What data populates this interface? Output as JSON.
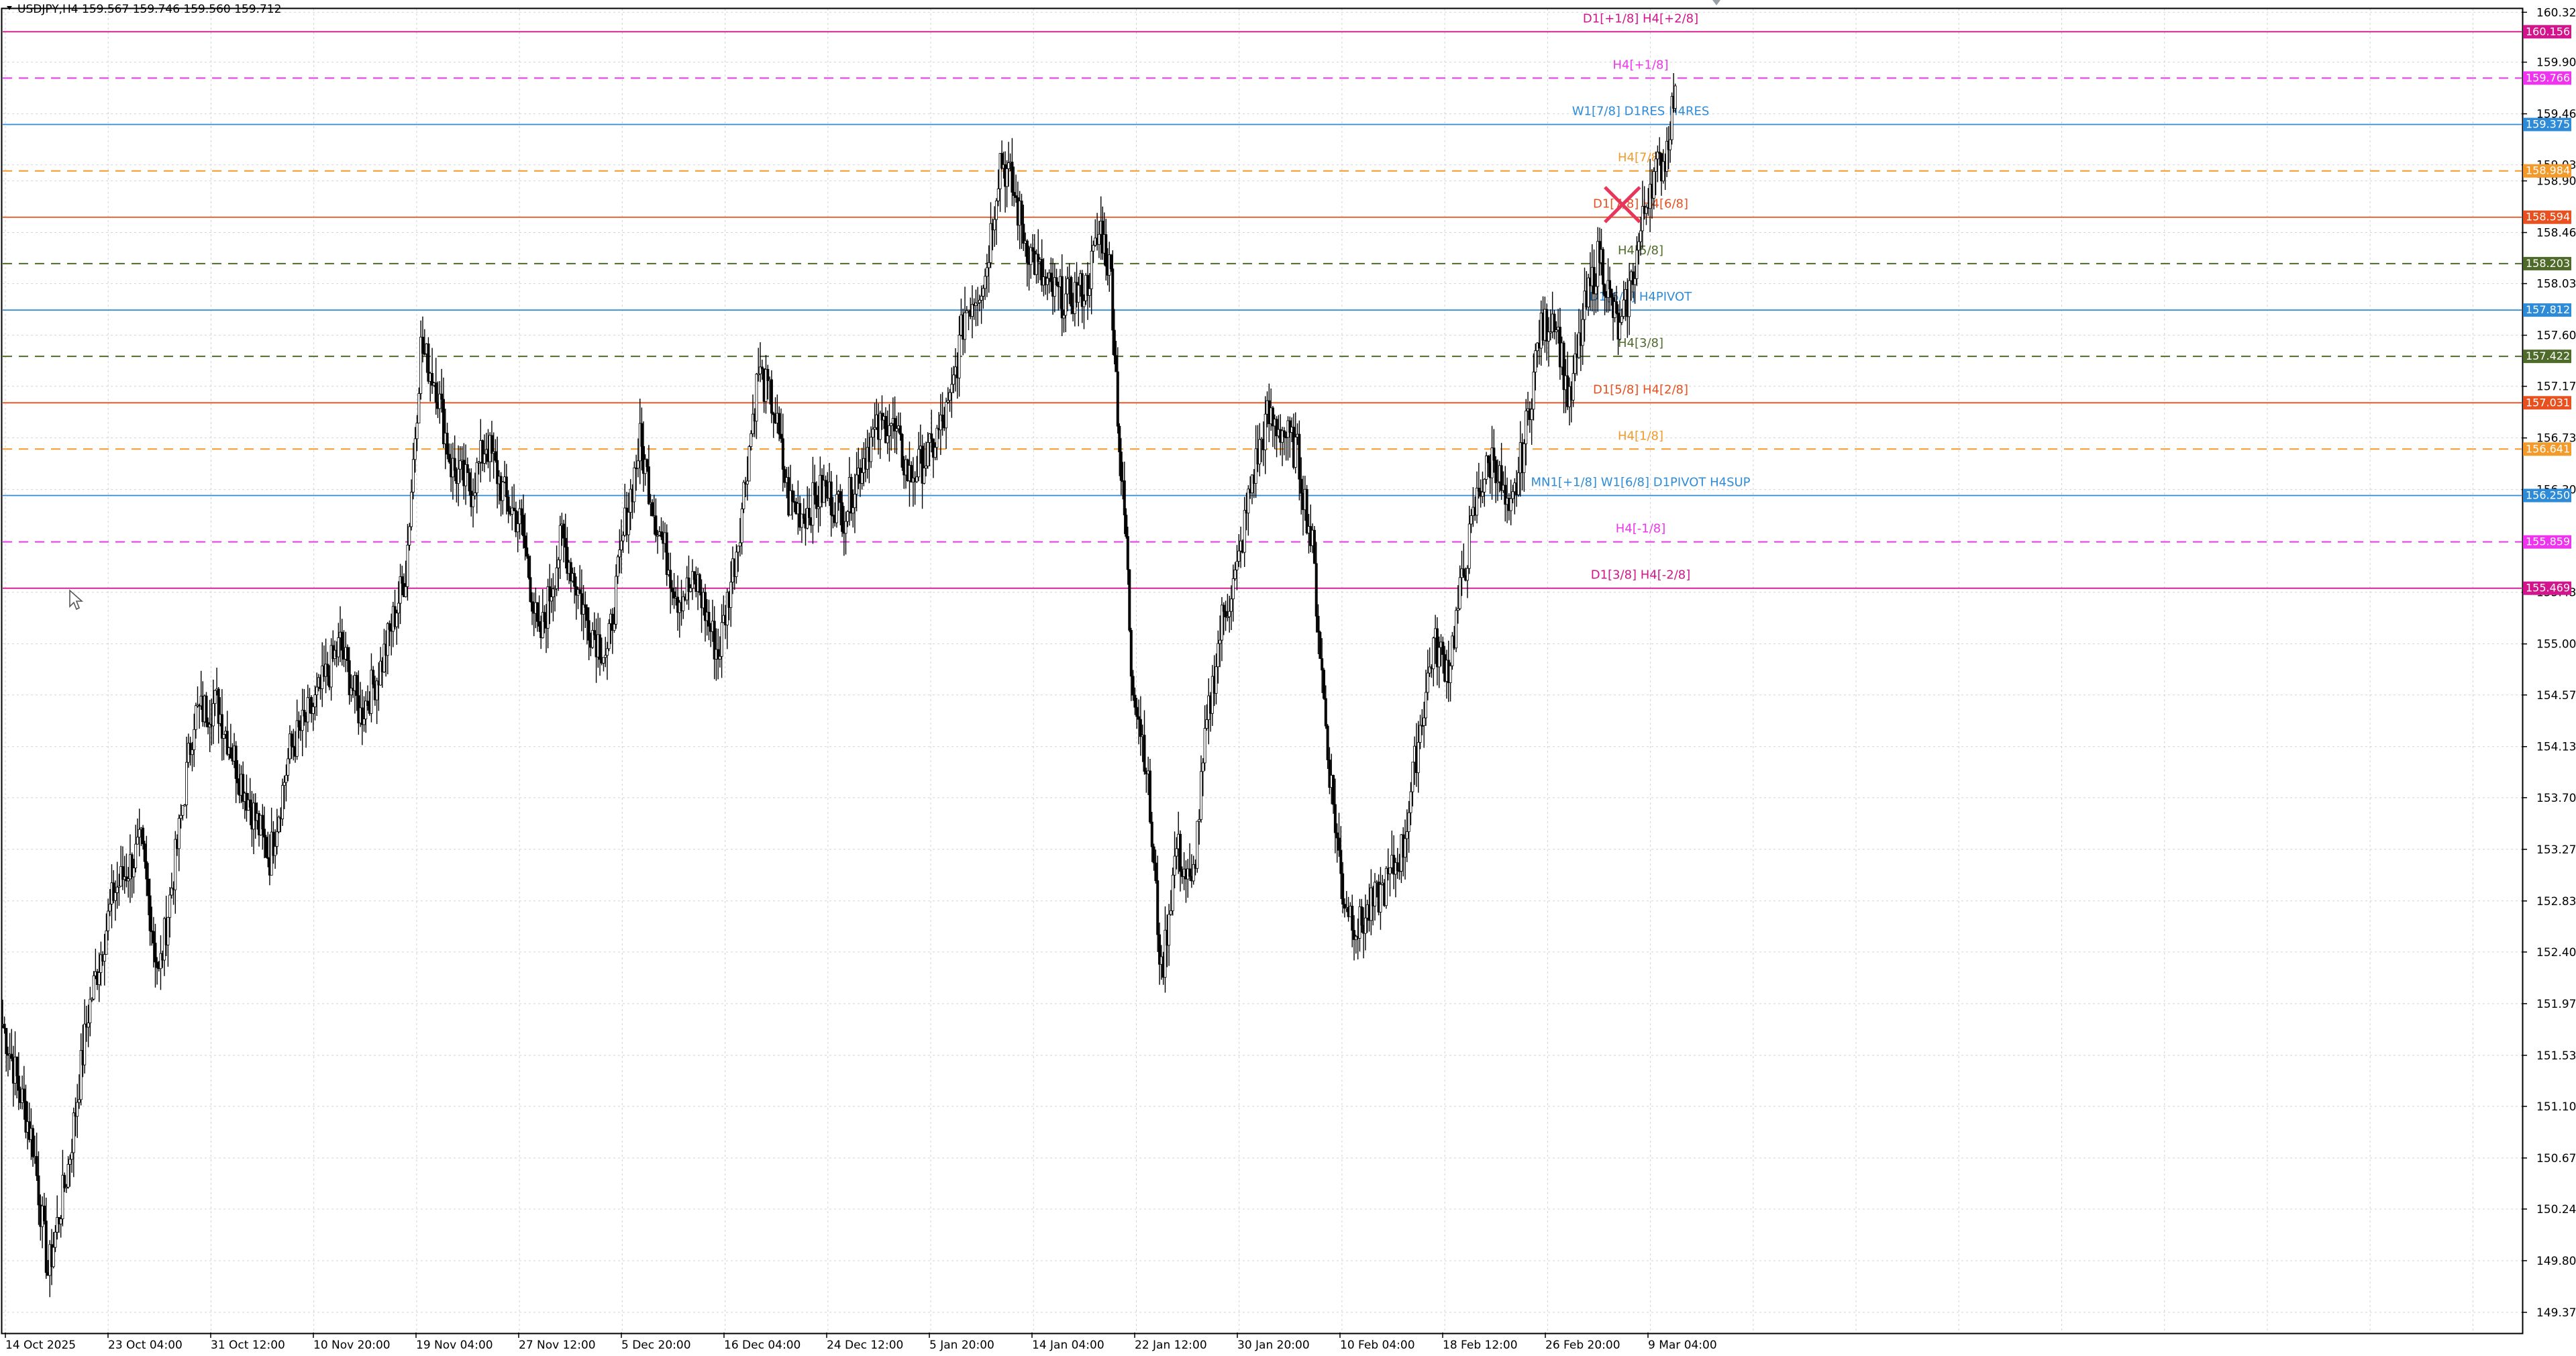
{
  "header": {
    "symbol_line": "USDJPY,H4  159.567 159.746 159.560 159.712"
  },
  "chart_data": {
    "type": "candlestick",
    "symbol": "USDJPY",
    "timeframe": "H4",
    "ohlc_header": {
      "open": 159.567,
      "high": 159.746,
      "low": 159.56,
      "close": 159.712
    },
    "ylim": [
      149.2,
      160.35
    ],
    "y_ticks": [
      "160.320",
      "159.900",
      "159.465",
      "159.035",
      "158.900",
      "158.465",
      "158.035",
      "157.600",
      "157.170",
      "156.735",
      "156.300",
      "155.435",
      "155.000",
      "154.570",
      "154.135",
      "153.705",
      "153.270",
      "152.835",
      "152.405",
      "151.970",
      "151.535",
      "151.105",
      "150.670",
      "150.240",
      "149.805",
      "149.370"
    ],
    "x_ticks": [
      "14 Oct 2025",
      "23 Oct 04:00",
      "31 Oct 12:00",
      "10 Nov 20:00",
      "19 Nov 04:00",
      "27 Nov 12:00",
      "5 Dec 20:00",
      "16 Dec 04:00",
      "24 Dec 12:00",
      "5 Jan 20:00",
      "14 Jan 04:00",
      "22 Jan 12:00",
      "30 Jan 20:00",
      "10 Feb 04:00",
      "18 Feb 12:00",
      "26 Feb 20:00",
      "9 Mar 04:00"
    ],
    "levels": [
      {
        "label": "D1[+1/8] H4[+2/8]",
        "price": 160.156,
        "tag": "160.156",
        "color": "#d4148c",
        "style": "solid"
      },
      {
        "label": "H4[+1/8]",
        "price": 159.766,
        "tag": "159.766",
        "color": "#ee34ee",
        "style": "dash"
      },
      {
        "label": "W1[7/8] D1RES H4RES",
        "price": 159.375,
        "tag": "159.375",
        "color": "#2e8bd8",
        "style": "solid"
      },
      {
        "label": "H4[7/8]",
        "price": 158.984,
        "tag": "158.984",
        "color": "#f39a2b",
        "style": "dash"
      },
      {
        "label": "D1[7/8] H4[6/8]",
        "price": 158.594,
        "tag": "158.594",
        "color": "#e8501f",
        "style": "solid"
      },
      {
        "label": "H4[5/8]",
        "price": 158.203,
        "tag": "158.203",
        "color": "#4e6b2a",
        "style": "dash"
      },
      {
        "label": "D1[6/8] H4PIVOT",
        "price": 157.812,
        "tag": "157.812",
        "color": "#2e8bd8",
        "style": "solid"
      },
      {
        "label": "H4[3/8]",
        "price": 157.422,
        "tag": "157.422",
        "color": "#4e6b2a",
        "style": "dash"
      },
      {
        "label": "D1[5/8] H4[2/8]",
        "price": 157.031,
        "tag": "157.031",
        "color": "#e8501f",
        "style": "solid"
      },
      {
        "label": "H4[1/8]",
        "price": 156.641,
        "tag": "156.641",
        "color": "#f39a2b",
        "style": "dash"
      },
      {
        "label": "MN1[+1/8] W1[6/8] D1PIVOT H4SUP",
        "price": 156.25,
        "tag": "156.250",
        "color": "#2e8bd8",
        "style": "solid"
      },
      {
        "label": "H4[-1/8]",
        "price": 155.859,
        "tag": "155.859",
        "color": "#ee34ee",
        "style": "dash"
      },
      {
        "label": "D1[3/8] H4[-2/8]",
        "price": 155.469,
        "tag": "155.469",
        "color": "#d4148c",
        "style": "solid"
      }
    ],
    "close_path": [
      {
        "x": 0.0,
        "y": 151.8
      },
      {
        "x": 0.012,
        "y": 150.8
      },
      {
        "x": 0.018,
        "y": 149.7
      },
      {
        "x": 0.026,
        "y": 150.6
      },
      {
        "x": 0.034,
        "y": 151.9
      },
      {
        "x": 0.044,
        "y": 152.9
      },
      {
        "x": 0.055,
        "y": 153.3
      },
      {
        "x": 0.062,
        "y": 152.2
      },
      {
        "x": 0.07,
        "y": 153.4
      },
      {
        "x": 0.076,
        "y": 154.4
      },
      {
        "x": 0.085,
        "y": 154.5
      },
      {
        "x": 0.094,
        "y": 153.9
      },
      {
        "x": 0.106,
        "y": 153.2
      },
      {
        "x": 0.114,
        "y": 154.1
      },
      {
        "x": 0.124,
        "y": 154.5
      },
      {
        "x": 0.134,
        "y": 155.0
      },
      {
        "x": 0.142,
        "y": 154.4
      },
      {
        "x": 0.15,
        "y": 154.8
      },
      {
        "x": 0.16,
        "y": 155.6
      },
      {
        "x": 0.166,
        "y": 157.5
      },
      {
        "x": 0.172,
        "y": 157.2
      },
      {
        "x": 0.178,
        "y": 156.5
      },
      {
        "x": 0.186,
        "y": 156.3
      },
      {
        "x": 0.192,
        "y": 156.7
      },
      {
        "x": 0.2,
        "y": 156.2
      },
      {
        "x": 0.206,
        "y": 156.0
      },
      {
        "x": 0.213,
        "y": 155.0
      },
      {
        "x": 0.222,
        "y": 155.9
      },
      {
        "x": 0.232,
        "y": 155.2
      },
      {
        "x": 0.24,
        "y": 154.9
      },
      {
        "x": 0.247,
        "y": 156.0
      },
      {
        "x": 0.253,
        "y": 156.7
      },
      {
        "x": 0.26,
        "y": 156.0
      },
      {
        "x": 0.268,
        "y": 155.4
      },
      {
        "x": 0.276,
        "y": 155.5
      },
      {
        "x": 0.284,
        "y": 154.9
      },
      {
        "x": 0.292,
        "y": 155.9
      },
      {
        "x": 0.3,
        "y": 157.3
      },
      {
        "x": 0.306,
        "y": 157.0
      },
      {
        "x": 0.312,
        "y": 156.2
      },
      {
        "x": 0.318,
        "y": 156.1
      },
      {
        "x": 0.326,
        "y": 156.3
      },
      {
        "x": 0.334,
        "y": 156.1
      },
      {
        "x": 0.344,
        "y": 156.7
      },
      {
        "x": 0.352,
        "y": 156.9
      },
      {
        "x": 0.36,
        "y": 156.4
      },
      {
        "x": 0.368,
        "y": 156.6
      },
      {
        "x": 0.376,
        "y": 157.0
      },
      {
        "x": 0.382,
        "y": 157.8
      },
      {
        "x": 0.39,
        "y": 158.1
      },
      {
        "x": 0.396,
        "y": 159.1
      },
      {
        "x": 0.4,
        "y": 158.9
      },
      {
        "x": 0.406,
        "y": 158.4
      },
      {
        "x": 0.414,
        "y": 158.0
      },
      {
        "x": 0.422,
        "y": 157.9
      },
      {
        "x": 0.43,
        "y": 158.0
      },
      {
        "x": 0.436,
        "y": 158.5
      },
      {
        "x": 0.44,
        "y": 158.1
      },
      {
        "x": 0.444,
        "y": 156.4
      },
      {
        "x": 0.446,
        "y": 155.9
      },
      {
        "x": 0.448,
        "y": 154.8
      },
      {
        "x": 0.454,
        "y": 154.0
      },
      {
        "x": 0.46,
        "y": 152.2
      },
      {
        "x": 0.466,
        "y": 153.3
      },
      {
        "x": 0.472,
        "y": 152.9
      },
      {
        "x": 0.478,
        "y": 154.3
      },
      {
        "x": 0.484,
        "y": 155.2
      },
      {
        "x": 0.49,
        "y": 155.6
      },
      {
        "x": 0.496,
        "y": 156.4
      },
      {
        "x": 0.502,
        "y": 156.9
      },
      {
        "x": 0.508,
        "y": 156.8
      },
      {
        "x": 0.514,
        "y": 156.6
      },
      {
        "x": 0.52,
        "y": 155.8
      },
      {
        "x": 0.526,
        "y": 154.1
      },
      {
        "x": 0.532,
        "y": 152.9
      },
      {
        "x": 0.538,
        "y": 152.6
      },
      {
        "x": 0.544,
        "y": 152.8
      },
      {
        "x": 0.55,
        "y": 153.0
      },
      {
        "x": 0.556,
        "y": 153.3
      },
      {
        "x": 0.562,
        "y": 154.2
      },
      {
        "x": 0.568,
        "y": 155.0
      },
      {
        "x": 0.574,
        "y": 154.8
      },
      {
        "x": 0.58,
        "y": 155.6
      },
      {
        "x": 0.586,
        "y": 156.3
      },
      {
        "x": 0.592,
        "y": 156.6
      },
      {
        "x": 0.598,
        "y": 156.0
      },
      {
        "x": 0.604,
        "y": 156.7
      },
      {
        "x": 0.61,
        "y": 157.6
      },
      {
        "x": 0.616,
        "y": 157.8
      },
      {
        "x": 0.622,
        "y": 157.0
      },
      {
        "x": 0.628,
        "y": 157.8
      },
      {
        "x": 0.634,
        "y": 158.3
      },
      {
        "x": 0.638,
        "y": 157.9
      },
      {
        "x": 0.642,
        "y": 157.6
      },
      {
        "x": 0.648,
        "y": 158.2
      },
      {
        "x": 0.654,
        "y": 158.9
      },
      {
        "x": 0.66,
        "y": 159.1
      },
      {
        "x": 0.664,
        "y": 159.7
      }
    ],
    "cross_marker": {
      "x": 0.643,
      "y": 158.7
    }
  }
}
